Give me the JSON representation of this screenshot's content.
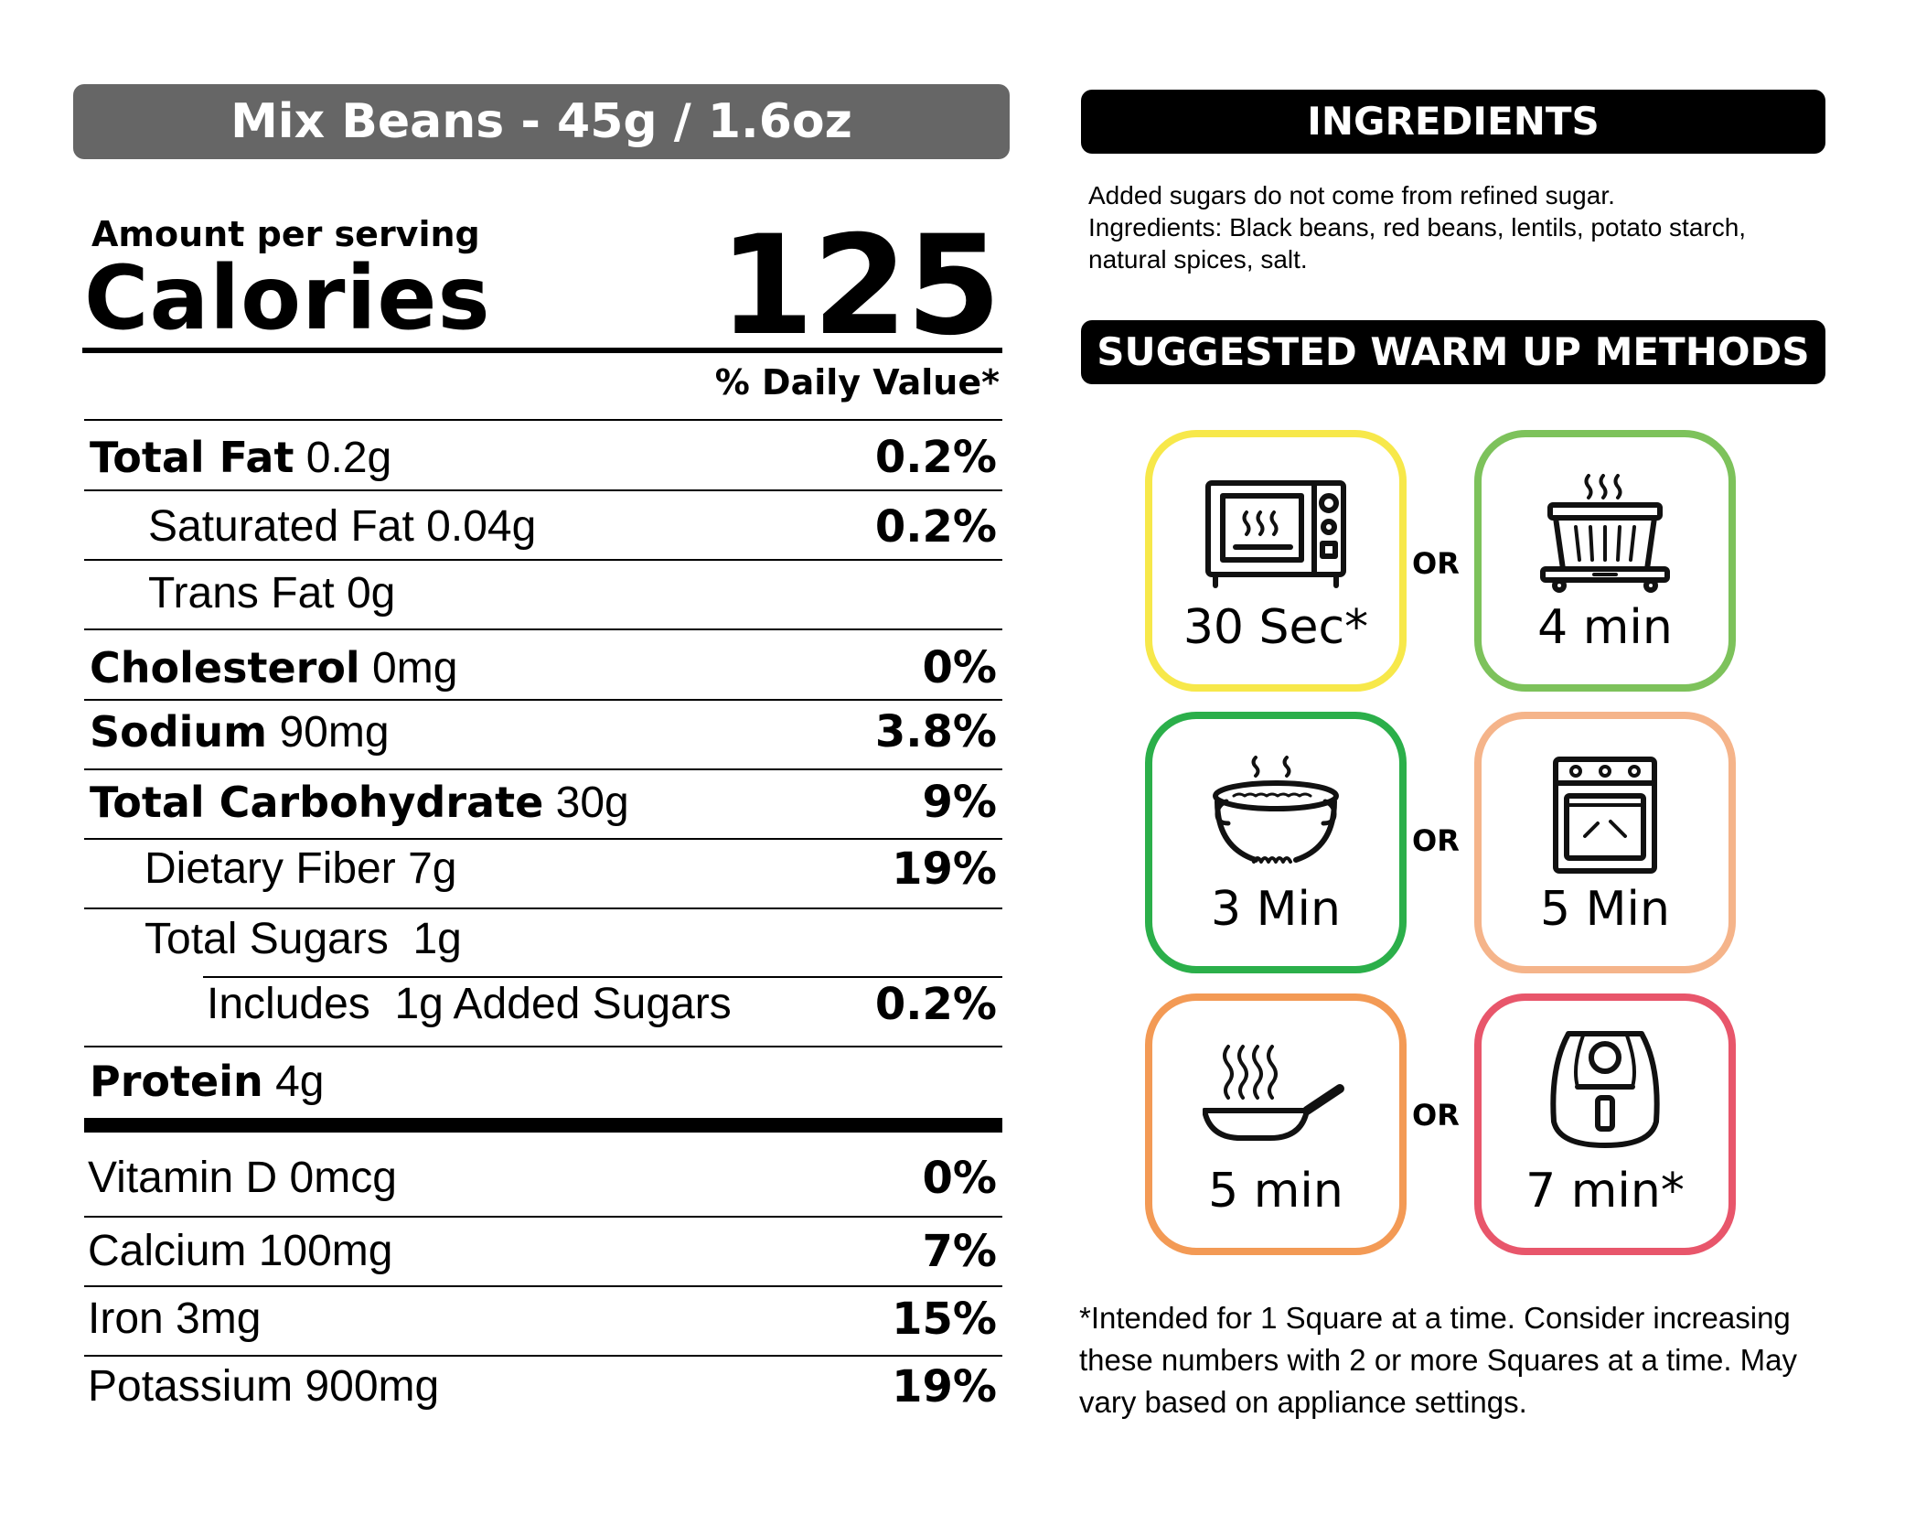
{
  "title": "Mix Beans - 45g / 1.6oz",
  "amount_per_serving": "Amount per serving",
  "calories_label": "Calories",
  "calories_value": "125",
  "daily_value_header": "% Daily Value*",
  "nutrients": [
    {
      "bold": "Total Fat",
      "amount": "0.2g",
      "dv": "0.2%"
    },
    {
      "bold": "",
      "amount": "Saturated Fat 0.04g",
      "dv": "0.2%"
    },
    {
      "bold": "",
      "amount": "Trans Fat 0g",
      "dv": ""
    },
    {
      "bold": "Cholesterol",
      "amount": "0mg",
      "dv": "0%"
    },
    {
      "bold": "Sodium",
      "amount": "90mg",
      "dv": "3.8%"
    },
    {
      "bold": "Total Carbohydrate",
      "amount": "30g",
      "dv": "9%"
    },
    {
      "bold": "",
      "amount": "Dietary Fiber 7g",
      "dv": "19%"
    },
    {
      "bold": "",
      "amount": "Total Sugars  1g",
      "dv": ""
    },
    {
      "bold": "",
      "amount": "Includes  1g Added Sugars",
      "dv": "0.2%"
    },
    {
      "bold": "Protein",
      "amount": "4g",
      "dv": ""
    }
  ],
  "vitamins": [
    {
      "label": "Vitamin D 0mcg",
      "dv": "0%"
    },
    {
      "label": "Calcium 100mg",
      "dv": "7%"
    },
    {
      "label": "Iron 3mg",
      "dv": "15%"
    },
    {
      "label": "Potassium 900mg",
      "dv": "19%"
    }
  ],
  "ingredients": {
    "header": "INGREDIENTS",
    "line1": "Added sugars do not come from refined sugar.",
    "line2": "Ingredients: Black beans, red beans, lentils, potato starch,",
    "line3": "natural spices, salt."
  },
  "warmup": {
    "header": "SUGGESTED WARM UP METHODS",
    "or_label": "OR",
    "methods": [
      {
        "icon": "microwave-icon",
        "time": "30 Sec*",
        "color": "#F7E84A"
      },
      {
        "icon": "steamer-icon",
        "time": "4 min",
        "color": "#7DC25B"
      },
      {
        "icon": "pot-icon",
        "time": "3 Min",
        "color": "#2BAF4A"
      },
      {
        "icon": "oven-icon",
        "time": "5 Min",
        "color": "#F5B48A"
      },
      {
        "icon": "frying-pan-icon",
        "time": "5 min",
        "color": "#F39A55"
      },
      {
        "icon": "air-fryer-icon",
        "time": "7 min*",
        "color": "#E8566B"
      }
    ]
  },
  "footnote": {
    "line1": "*Intended for 1 Square at a time. Consider increasing",
    "line2": "these numbers with 2 or more Squares at a time. May",
    "line3": "vary based on appliance settings."
  }
}
